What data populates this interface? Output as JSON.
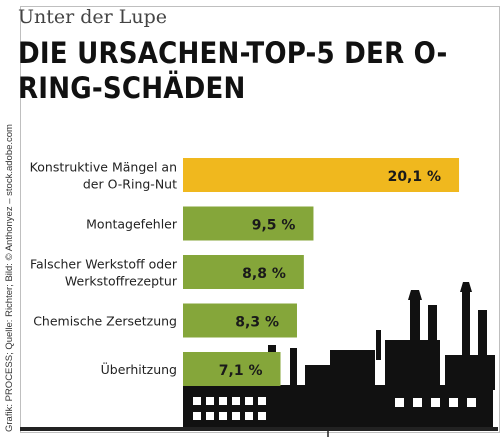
{
  "header": {
    "kicker": "Unter der Lupe",
    "title": "DIE URSACHEN-TOP-5 DER O-RING-SCHÄDEN"
  },
  "credit": "Grafik: PROCESS; Quelle: Richter; Bild: © Anthonyez – stock.adobe.com",
  "colors": {
    "highlight": "#f0b81e",
    "bar": "#85a63a",
    "silhouette": "#111111",
    "baseline": "#222222"
  },
  "chart_data": {
    "type": "bar",
    "orientation": "horizontal",
    "unit": "%",
    "categories": [
      [
        "Konstruktive Mängel an",
        "der O-Ring-Nut"
      ],
      [
        "Montagefehler"
      ],
      [
        "Falscher Werkstoff oder",
        "Werkstoffrezeptur"
      ],
      [
        "Chemische Zersetzung"
      ],
      [
        "Überhitzung"
      ]
    ],
    "values": [
      20.1,
      9.5,
      8.8,
      8.3,
      7.1
    ],
    "value_labels": [
      "20,1 %",
      "9,5 %",
      "8,8 %",
      "8,3 %",
      "7,1 %"
    ],
    "highlight_index": 0,
    "xlim": [
      0,
      22.5
    ]
  }
}
